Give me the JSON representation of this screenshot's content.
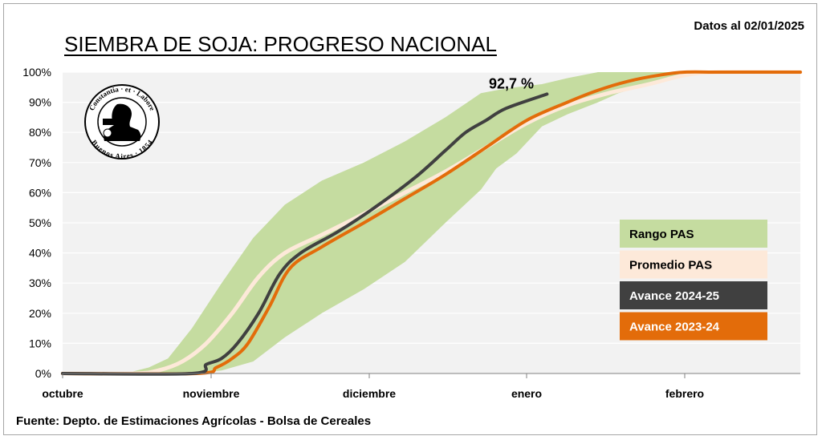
{
  "header": {
    "title": "SIEMBRA DE SOJA: PROGRESO NACIONAL",
    "date_note": "Datos al 02/01/2025"
  },
  "footer": {
    "source": "Fuente: Depto. de Estimaciones Agrícolas - Bolsa de Cereales"
  },
  "logo": {
    "name": "bolsa-de-cereales-seal-icon",
    "text_top": "Constantia · et · Labore",
    "text_bottom": "Buenos Aires · 1854"
  },
  "chart_data": {
    "type": "line",
    "title": "SIEMBRA DE SOJA: PROGRESO NACIONAL",
    "xlabel": "",
    "ylabel": "",
    "x_unit": "days since 1 Oct",
    "xlim": [
      0,
      123
    ],
    "ylim": [
      0,
      100
    ],
    "grid": true,
    "x_ticks": [
      {
        "label": "octubre",
        "x": 0
      },
      {
        "label": "noviembre",
        "x": 31
      },
      {
        "label": "diciembre",
        "x": 61
      },
      {
        "label": "enero",
        "x": 92
      },
      {
        "label": "febrero",
        "x": 123
      }
    ],
    "y_ticks": [
      "0%",
      "10%",
      "20%",
      "30%",
      "40%",
      "50%",
      "60%",
      "70%",
      "80%",
      "90%",
      "100%"
    ],
    "y_tick_values": [
      0,
      10,
      20,
      30,
      40,
      50,
      60,
      70,
      80,
      90,
      100
    ],
    "legend_position": "right",
    "range": {
      "name": "Rango PAS",
      "color": "#c5dca0",
      "x": [
        0,
        13,
        18,
        22,
        27,
        33,
        39,
        45,
        52,
        60,
        68,
        76,
        83,
        86,
        90,
        95,
        100,
        106,
        110,
        118,
        123,
        130,
        138,
        146
      ],
      "upper": [
        0,
        0,
        2,
        5,
        15,
        30,
        45,
        56,
        64,
        70,
        77,
        85,
        93,
        94,
        95,
        96,
        98,
        100,
        100,
        100,
        100,
        100,
        100,
        100
      ],
      "lower": [
        0,
        0,
        0,
        0,
        0,
        1,
        4,
        12,
        20,
        28,
        37,
        50,
        61,
        68,
        73,
        82,
        86,
        90,
        93,
        97,
        100,
        100,
        100,
        100
      ]
    },
    "series": [
      {
        "name": "Promedio PAS",
        "color": "#fde9d9",
        "legend_text_color": "#000000",
        "x": [
          0,
          15,
          20,
          25,
          30,
          35,
          40,
          45,
          52,
          60,
          68,
          76,
          84,
          92,
          100,
          108,
          116,
          123,
          130,
          146
        ],
        "y": [
          0,
          0,
          1,
          4,
          10,
          20,
          32,
          40,
          46,
          53,
          60,
          67,
          75,
          83,
          89,
          93,
          96,
          99,
          100,
          100
        ]
      },
      {
        "name": "Avance 2024-25",
        "color": "#404040",
        "legend_text_color": "#ffffff",
        "x": [
          0,
          27,
          30,
          33,
          36,
          40,
          44,
          48,
          55,
          62,
          70,
          76,
          80,
          84,
          88,
          96
        ],
        "y": [
          0,
          0,
          3,
          5,
          10,
          20,
          33,
          40,
          47,
          55,
          65,
          74,
          80,
          84,
          88,
          92.7
        ]
      },
      {
        "name": "Avance 2023-24",
        "color": "#e36c0a",
        "legend_text_color": "#ffffff",
        "x": [
          0,
          28,
          32,
          35,
          38,
          42,
          46,
          52,
          60,
          68,
          76,
          84,
          92,
          100,
          106,
          112,
          118,
          123,
          130,
          146
        ],
        "y": [
          0,
          0,
          2,
          5,
          10,
          22,
          35,
          42,
          50,
          58,
          66,
          75,
          84,
          90,
          94,
          97,
          99,
          100,
          100,
          100
        ]
      }
    ],
    "annotations": [
      {
        "text": "92,7 %",
        "x": 89,
        "y": 94.5,
        "series": "Avance 2024-25"
      }
    ]
  }
}
